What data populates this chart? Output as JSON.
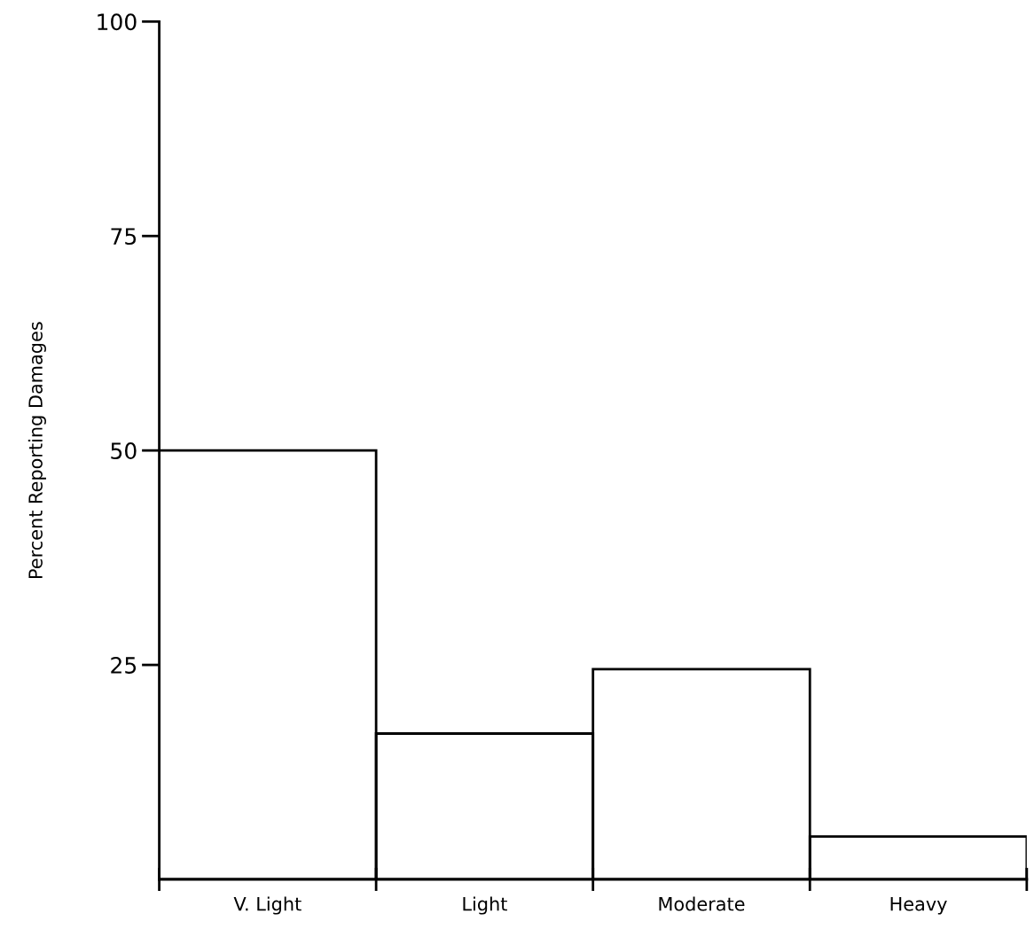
{
  "chart_data": {
    "type": "bar",
    "ylabel": "Percent Reporting Damages",
    "categories": [
      "V. Light",
      "Light",
      "Moderate",
      "Heavy"
    ],
    "values": [
      50,
      17,
      24.5,
      5
    ],
    "color": "#000000",
    "ylim": [
      0,
      100
    ],
    "yticks": [
      25,
      50,
      75,
      100
    ],
    "grid": false,
    "legend": false
  }
}
